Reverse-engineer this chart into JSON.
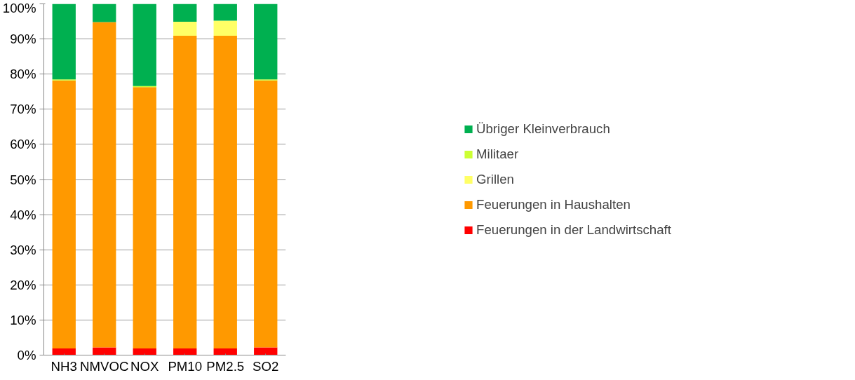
{
  "chart_data": {
    "type": "bar",
    "stacked": true,
    "categories": [
      "NH3",
      "NMVOC",
      "NOX",
      "PM10",
      "PM2.5",
      "SO2"
    ],
    "series": [
      {
        "name": "Feuerungen in der Landwirtschaft",
        "color": "#ff0000",
        "values": [
          1.9,
          2.2,
          1.9,
          1.9,
          1.9,
          2.2
        ]
      },
      {
        "name": "Feuerungen in Haushalten",
        "color": "#ff9900",
        "values": [
          76.3,
          92.6,
          74.4,
          89.0,
          89.0,
          76.0
        ]
      },
      {
        "name": "Grillen",
        "color": "#ffff66",
        "values": [
          0,
          0,
          0,
          4.0,
          4.3,
          0
        ]
      },
      {
        "name": "Militaer",
        "color": "#ccff33",
        "values": [
          0.3,
          0,
          0.3,
          0,
          0,
          0.3
        ]
      },
      {
        "name": "Übriger Kleinverbrauch",
        "color": "#00b050",
        "values": [
          21.5,
          5.2,
          23.4,
          5.1,
          4.8,
          21.5
        ]
      }
    ],
    "ylim": [
      0,
      100
    ],
    "yticks": [
      {
        "value": 0,
        "label": "0%"
      },
      {
        "value": 10,
        "label": "10%"
      },
      {
        "value": 20,
        "label": "20%"
      },
      {
        "value": 30,
        "label": "30%"
      },
      {
        "value": 40,
        "label": "40%"
      },
      {
        "value": 50,
        "label": "50%"
      },
      {
        "value": 60,
        "label": "60%"
      },
      {
        "value": 70,
        "label": "70%"
      },
      {
        "value": 80,
        "label": "80%"
      },
      {
        "value": 90,
        "label": "90%"
      },
      {
        "value": 100,
        "label": "100%"
      }
    ],
    "grid": "y",
    "legend": "right"
  }
}
